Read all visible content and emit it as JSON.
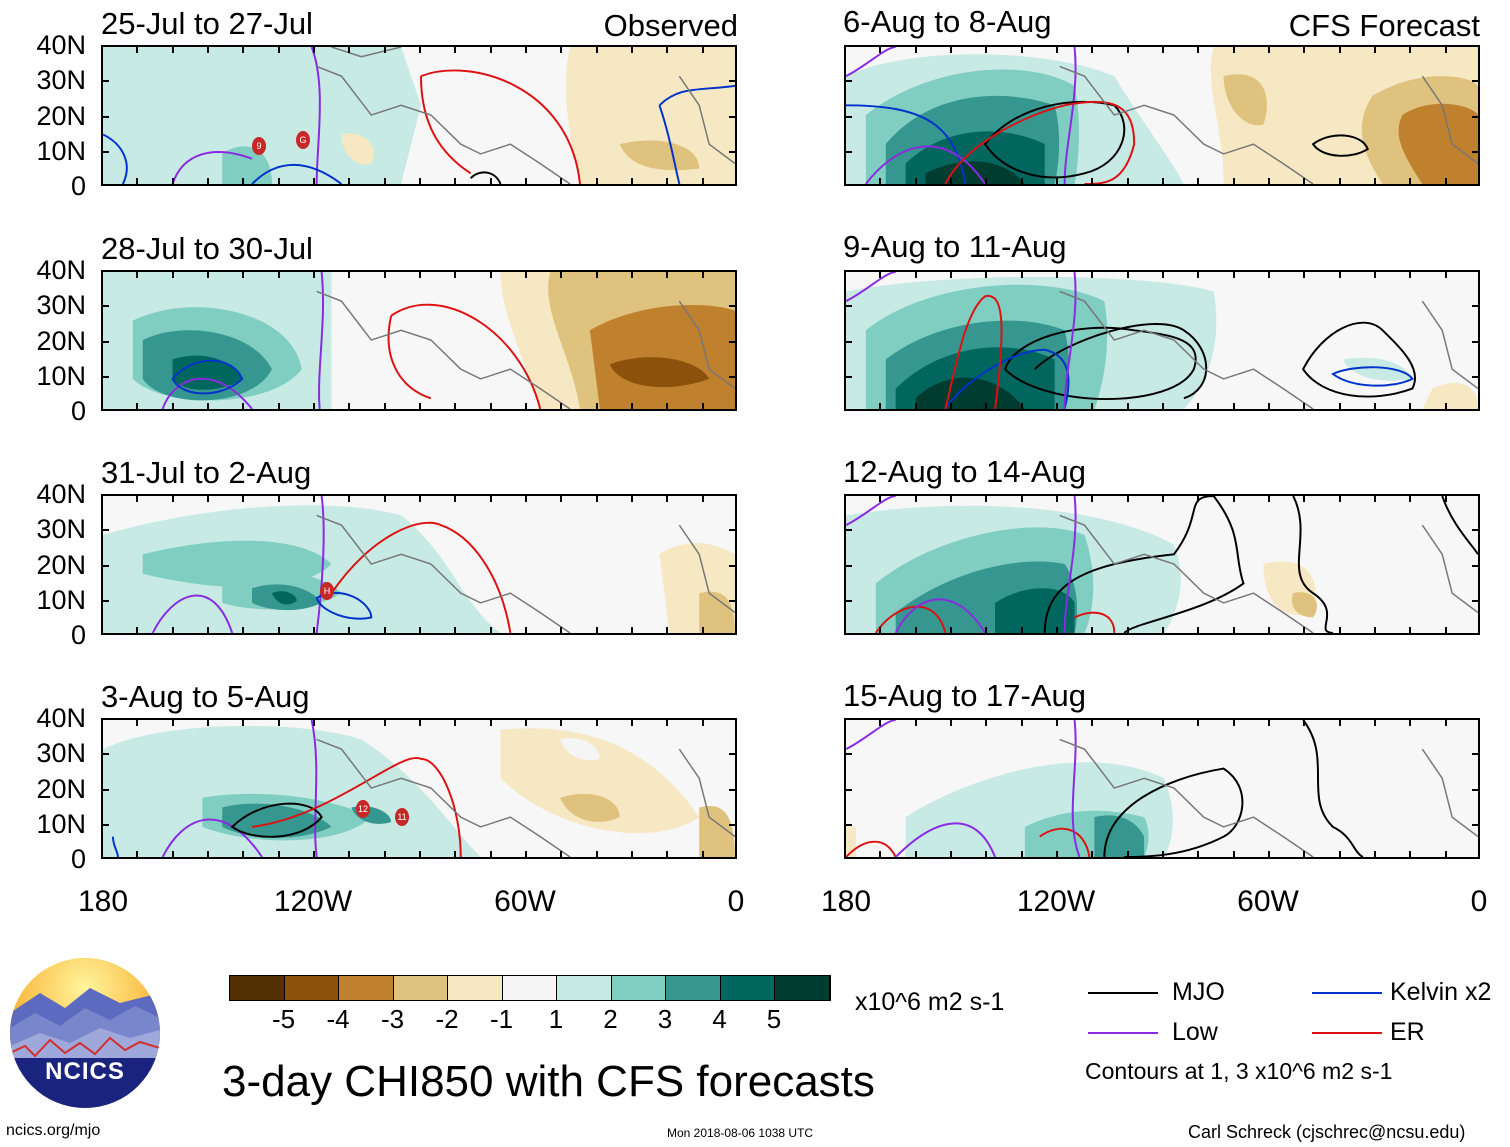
{
  "panels_left": [
    {
      "title": "25-Jul to 27-Jul",
      "tag": "Observed"
    },
    {
      "title": "28-Jul to 30-Jul",
      "tag": ""
    },
    {
      "title": "31-Jul to 2-Aug",
      "tag": ""
    },
    {
      "title": "3-Aug to 5-Aug",
      "tag": ""
    }
  ],
  "panels_right": [
    {
      "title": "6-Aug to 8-Aug",
      "tag": "CFS Forecast"
    },
    {
      "title": "9-Aug to 11-Aug",
      "tag": ""
    },
    {
      "title": "12-Aug to 14-Aug",
      "tag": ""
    },
    {
      "title": "15-Aug to 17-Aug",
      "tag": ""
    }
  ],
  "y_axis_labels": [
    "40N",
    "30N",
    "20N",
    "10N",
    "0"
  ],
  "x_axis_labels": [
    "180",
    "120W",
    "60W",
    "0"
  ],
  "storm_markers": {
    "p0": [
      "9",
      "G"
    ],
    "p2": [
      "H"
    ],
    "p3": [
      "12",
      "11"
    ]
  },
  "colorbar": {
    "colors": [
      "#543005",
      "#8c510a",
      "#bf812d",
      "#dfc27d",
      "#f6e8c3",
      "#f5f5f5",
      "#c7eae5",
      "#80cdc1",
      "#35978f",
      "#01665e",
      "#003c30"
    ],
    "tick_labels": [
      "-5",
      "-4",
      "-3",
      "-2",
      "-1",
      "1",
      "2",
      "3",
      "4",
      "5"
    ],
    "units": "x10^6 m2 s-1"
  },
  "main_title": "3-day CHI850 with CFS forecasts",
  "legend": {
    "items": [
      {
        "label": "MJO",
        "color": "#000000"
      },
      {
        "label": "Kelvin x2",
        "color": "#0033cc"
      },
      {
        "label": "Low",
        "color": "#8a2be2"
      },
      {
        "label": "ER",
        "color": "#dd1111"
      }
    ],
    "note": "Contours at 1, 3 x10^6 m2 s-1"
  },
  "logo_text": "NCICS",
  "footer": {
    "left": "ncics.org/mjo",
    "center": "Mon 2018-08-06 1038 UTC",
    "right": "Carl Schreck (cjschrec@ncsu.edu)"
  }
}
